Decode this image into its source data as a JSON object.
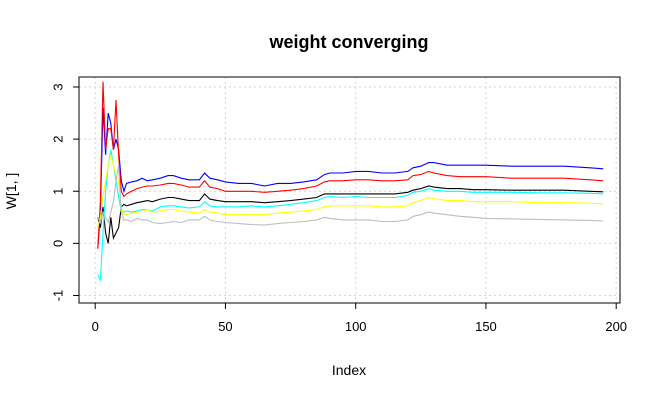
{
  "chart_data": {
    "type": "line",
    "title": "weight converging",
    "xlabel": "Index",
    "ylabel": "W[1, ]",
    "xlim": [
      0,
      200
    ],
    "ylim": [
      -1,
      3
    ],
    "xticks": [
      0,
      50,
      100,
      150,
      200
    ],
    "yticks": [
      -1,
      0,
      1,
      2,
      3
    ],
    "xtick_labels": [
      "0",
      "50",
      "100",
      "150",
      "200"
    ],
    "ytick_labels": [
      "-1",
      "0",
      "1",
      "2",
      "3"
    ],
    "grid": true,
    "series": [
      {
        "color": "#0000ff",
        "x": [
          1,
          2,
          3,
          4,
          5,
          6,
          7,
          8,
          9,
          10,
          11,
          12,
          14,
          16,
          18,
          20,
          22,
          25,
          28,
          30,
          33,
          36,
          40,
          42,
          44,
          47,
          50,
          55,
          60,
          65,
          70,
          75,
          80,
          85,
          88,
          90,
          95,
          100,
          105,
          110,
          115,
          120,
          122,
          125,
          128,
          130,
          135,
          140,
          145,
          150,
          160,
          170,
          180,
          190,
          195
        ],
        "y": [
          -0.1,
          0.6,
          2.6,
          1.7,
          2.5,
          2.3,
          1.8,
          2.0,
          1.8,
          1.2,
          1.0,
          1.15,
          1.18,
          1.2,
          1.25,
          1.2,
          1.22,
          1.25,
          1.3,
          1.3,
          1.25,
          1.22,
          1.22,
          1.35,
          1.25,
          1.22,
          1.18,
          1.15,
          1.15,
          1.1,
          1.15,
          1.15,
          1.18,
          1.22,
          1.32,
          1.35,
          1.35,
          1.38,
          1.38,
          1.35,
          1.35,
          1.38,
          1.45,
          1.48,
          1.55,
          1.55,
          1.5,
          1.5,
          1.5,
          1.5,
          1.48,
          1.48,
          1.48,
          1.45,
          1.43
        ]
      },
      {
        "color": "#ff0000",
        "x": [
          1,
          2,
          3,
          4,
          5,
          6,
          7,
          8,
          9,
          10,
          11,
          12,
          14,
          16,
          18,
          20,
          22,
          25,
          28,
          30,
          33,
          36,
          40,
          42,
          44,
          47,
          50,
          55,
          60,
          65,
          70,
          75,
          80,
          85,
          88,
          90,
          95,
          100,
          105,
          110,
          115,
          120,
          122,
          125,
          128,
          130,
          135,
          140,
          145,
          150,
          160,
          170,
          180,
          190,
          195
        ],
        "y": [
          -0.1,
          0.8,
          3.1,
          1.8,
          2.2,
          2.2,
          1.8,
          2.75,
          1.7,
          1.0,
          0.9,
          0.95,
          1.0,
          1.05,
          1.08,
          1.1,
          1.1,
          1.12,
          1.15,
          1.15,
          1.12,
          1.08,
          1.08,
          1.2,
          1.08,
          1.05,
          1.0,
          1.0,
          1.0,
          0.98,
          1.0,
          1.02,
          1.05,
          1.1,
          1.18,
          1.2,
          1.2,
          1.22,
          1.22,
          1.2,
          1.2,
          1.22,
          1.3,
          1.32,
          1.38,
          1.35,
          1.3,
          1.28,
          1.28,
          1.28,
          1.25,
          1.25,
          1.25,
          1.22,
          1.2
        ]
      },
      {
        "color": "#000000",
        "x": [
          1,
          2,
          3,
          4,
          5,
          6,
          7,
          8,
          9,
          10,
          11,
          12,
          14,
          16,
          18,
          20,
          22,
          25,
          28,
          30,
          33,
          36,
          40,
          42,
          44,
          47,
          50,
          55,
          60,
          65,
          70,
          75,
          80,
          85,
          88,
          90,
          95,
          100,
          105,
          110,
          115,
          120,
          122,
          125,
          128,
          130,
          135,
          140,
          145,
          150,
          160,
          170,
          180,
          190,
          195
        ],
        "y": [
          0.5,
          0.3,
          0.7,
          0.2,
          0.0,
          0.5,
          0.1,
          0.2,
          0.3,
          0.7,
          0.75,
          0.72,
          0.75,
          0.78,
          0.8,
          0.82,
          0.8,
          0.85,
          0.88,
          0.88,
          0.85,
          0.82,
          0.82,
          0.95,
          0.85,
          0.82,
          0.8,
          0.8,
          0.8,
          0.78,
          0.8,
          0.82,
          0.85,
          0.88,
          0.95,
          0.95,
          0.95,
          0.95,
          0.95,
          0.95,
          0.95,
          0.98,
          1.02,
          1.05,
          1.1,
          1.08,
          1.05,
          1.05,
          1.03,
          1.03,
          1.02,
          1.02,
          1.02,
          1.0,
          0.99
        ]
      },
      {
        "color": "#00ffff",
        "x": [
          1,
          2,
          3,
          4,
          5,
          6,
          7,
          8,
          9,
          10,
          11,
          12,
          14,
          16,
          18,
          20,
          22,
          25,
          28,
          30,
          33,
          36,
          40,
          42,
          44,
          47,
          50,
          55,
          60,
          65,
          70,
          75,
          80,
          85,
          88,
          90,
          95,
          100,
          105,
          110,
          115,
          120,
          122,
          125,
          128,
          130,
          135,
          140,
          145,
          150,
          160,
          170,
          180,
          190,
          195
        ],
        "y": [
          -0.6,
          -0.7,
          0.2,
          1.0,
          1.5,
          1.8,
          1.5,
          1.2,
          0.9,
          0.6,
          0.6,
          0.62,
          0.6,
          0.62,
          0.65,
          0.65,
          0.62,
          0.7,
          0.72,
          0.72,
          0.7,
          0.68,
          0.7,
          0.8,
          0.72,
          0.7,
          0.7,
          0.7,
          0.72,
          0.7,
          0.72,
          0.75,
          0.78,
          0.82,
          0.88,
          0.9,
          0.88,
          0.9,
          0.88,
          0.88,
          0.88,
          0.92,
          0.98,
          1.0,
          1.05,
          1.02,
          1.0,
          1.0,
          0.98,
          0.98,
          0.98,
          0.97,
          0.97,
          0.96,
          0.95
        ]
      },
      {
        "color": "#ffff00",
        "x": [
          1,
          2,
          3,
          4,
          5,
          6,
          7,
          8,
          9,
          10,
          11,
          12,
          14,
          16,
          18,
          20,
          22,
          25,
          28,
          30,
          33,
          36,
          40,
          42,
          44,
          47,
          50,
          55,
          60,
          65,
          70,
          75,
          80,
          85,
          88,
          90,
          95,
          100,
          105,
          110,
          115,
          120,
          122,
          125,
          128,
          130,
          135,
          140,
          145,
          150,
          160,
          170,
          180,
          190,
          195
        ],
        "y": [
          0.3,
          0.5,
          0.9,
          1.2,
          1.5,
          1.7,
          1.5,
          1.3,
          1.2,
          0.7,
          0.55,
          0.55,
          0.58,
          0.6,
          0.62,
          0.65,
          0.6,
          0.62,
          0.65,
          0.65,
          0.62,
          0.6,
          0.58,
          0.65,
          0.6,
          0.58,
          0.55,
          0.55,
          0.55,
          0.55,
          0.58,
          0.6,
          0.62,
          0.65,
          0.7,
          0.72,
          0.72,
          0.72,
          0.72,
          0.7,
          0.7,
          0.72,
          0.78,
          0.82,
          0.88,
          0.86,
          0.82,
          0.82,
          0.8,
          0.8,
          0.8,
          0.78,
          0.78,
          0.77,
          0.76
        ]
      },
      {
        "color": "#bebebe",
        "x": [
          1,
          2,
          3,
          4,
          5,
          6,
          7,
          8,
          9,
          10,
          11,
          12,
          14,
          16,
          18,
          20,
          22,
          25,
          28,
          30,
          33,
          36,
          40,
          42,
          44,
          47,
          50,
          55,
          60,
          65,
          70,
          75,
          80,
          85,
          88,
          90,
          95,
          100,
          105,
          110,
          115,
          120,
          122,
          125,
          128,
          130,
          135,
          140,
          145,
          150,
          160,
          170,
          180,
          190,
          195
        ],
        "y": [
          0.5,
          0.4,
          0.6,
          0.5,
          0.4,
          0.6,
          0.8,
          1.2,
          1.5,
          0.6,
          0.45,
          0.45,
          0.42,
          0.48,
          0.45,
          0.45,
          0.4,
          0.38,
          0.4,
          0.42,
          0.4,
          0.45,
          0.45,
          0.52,
          0.45,
          0.42,
          0.4,
          0.38,
          0.36,
          0.35,
          0.38,
          0.4,
          0.42,
          0.45,
          0.5,
          0.48,
          0.45,
          0.45,
          0.45,
          0.42,
          0.42,
          0.45,
          0.52,
          0.55,
          0.6,
          0.58,
          0.55,
          0.52,
          0.5,
          0.48,
          0.47,
          0.46,
          0.45,
          0.44,
          0.43
        ]
      }
    ]
  }
}
